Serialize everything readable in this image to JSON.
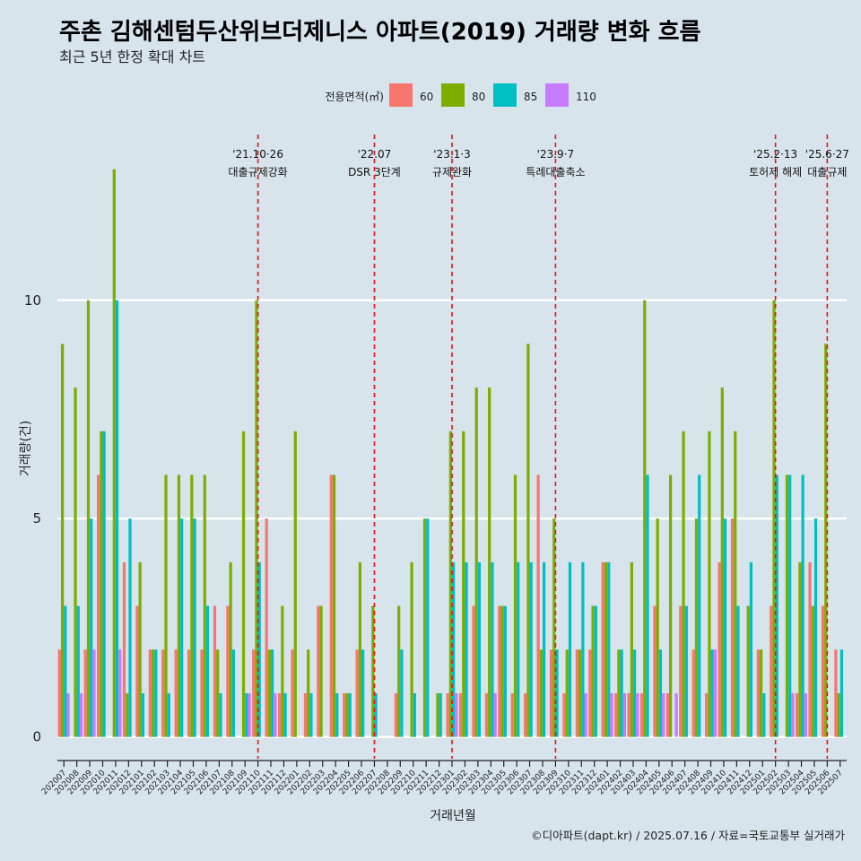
{
  "chart_data": {
    "type": "bar",
    "title": "주촌 김해센텀두산위브더제니스 아파트(2019) 거래량 변화 흐름",
    "subtitle": "최근 5년 한정 확대 차트",
    "xlabel": "거래년월",
    "ylabel": "거래량(건)",
    "ylim": [
      -0.5,
      14
    ],
    "yticks": [
      0,
      5,
      10
    ],
    "legend_title": "전용면적(㎡)",
    "legend_position": "top",
    "caption": "©디아파트(dapt.kr) / 2025.07.16 / 자료=국토교통부 실거래가",
    "categories": [
      "202007",
      "202008",
      "202009",
      "202010",
      "202011",
      "202012",
      "202101",
      "202102",
      "202103",
      "202104",
      "202105",
      "202106",
      "202107",
      "202108",
      "202109",
      "202110",
      "202111",
      "202112",
      "202201",
      "202202",
      "202203",
      "202204",
      "202205",
      "202206",
      "202207",
      "202208",
      "202209",
      "202210",
      "202211",
      "202212",
      "202301",
      "202302",
      "202303",
      "202304",
      "202305",
      "202306",
      "202307",
      "202308",
      "202309",
      "202310",
      "202311",
      "202312",
      "202401",
      "202402",
      "202403",
      "202404",
      "202405",
      "202406",
      "202407",
      "202408",
      "202409",
      "202410",
      "202411",
      "202412",
      "202501",
      "202502",
      "202503",
      "202504",
      "202505",
      "202506",
      "202507"
    ],
    "series": [
      {
        "name": "60",
        "color": "#f8766d",
        "values": [
          2,
          0,
          2,
          6,
          0,
          4,
          3,
          2,
          2,
          2,
          2,
          2,
          3,
          3,
          0,
          2,
          5,
          1,
          2,
          1,
          3,
          6,
          1,
          2,
          0,
          0,
          1,
          0,
          0,
          0,
          1,
          1,
          3,
          1,
          3,
          1,
          1,
          6,
          2,
          1,
          2,
          2,
          4,
          1,
          1,
          1,
          3,
          1,
          3,
          2,
          1,
          4,
          5,
          0,
          2,
          3,
          0,
          1,
          4,
          3,
          2
        ]
      },
      {
        "name": "80",
        "color": "#7cae00",
        "values": [
          9,
          8,
          10,
          7,
          13,
          1,
          4,
          2,
          6,
          6,
          6,
          6,
          2,
          4,
          7,
          10,
          2,
          3,
          7,
          2,
          3,
          6,
          1,
          4,
          3,
          0,
          3,
          4,
          5,
          1,
          7,
          7,
          8,
          8,
          3,
          6,
          9,
          2,
          5,
          2,
          2,
          3,
          4,
          2,
          4,
          10,
          5,
          6,
          7,
          5,
          7,
          8,
          7,
          3,
          2,
          10,
          6,
          4,
          3,
          9,
          1
        ]
      },
      {
        "name": "85",
        "color": "#00bfc4",
        "values": [
          3,
          3,
          5,
          7,
          10,
          5,
          1,
          2,
          1,
          5,
          5,
          3,
          1,
          2,
          1,
          4,
          2,
          1,
          0,
          1,
          0,
          1,
          1,
          2,
          1,
          0,
          2,
          1,
          5,
          1,
          4,
          4,
          4,
          4,
          3,
          4,
          4,
          4,
          2,
          4,
          4,
          3,
          4,
          2,
          2,
          6,
          2,
          0,
          3,
          6,
          2,
          5,
          3,
          4,
          1,
          6,
          6,
          6,
          5,
          0,
          2
        ]
      },
      {
        "name": "110",
        "color": "#c77cff",
        "values": [
          1,
          1,
          2,
          0,
          2,
          0,
          0,
          0,
          0,
          0,
          0,
          0,
          0,
          0,
          1,
          0,
          1,
          0,
          0,
          0,
          0,
          0,
          0,
          0,
          0,
          0,
          0,
          0,
          0,
          0,
          1,
          0,
          0,
          1,
          0,
          0,
          0,
          0,
          0,
          0,
          1,
          0,
          1,
          1,
          1,
          0,
          1,
          1,
          0,
          0,
          2,
          0,
          0,
          0,
          0,
          0,
          1,
          1,
          0,
          0,
          0
        ]
      }
    ],
    "events": [
      {
        "label_date": "'21.10·26",
        "label_text": "대출규제강화",
        "category": "202110"
      },
      {
        "label_date": "'22.07",
        "label_text": "DSR 3단계",
        "category": "202207"
      },
      {
        "label_date": "'23.1·3",
        "label_text": "규제완화",
        "category": "202301"
      },
      {
        "label_date": "'23.9·7",
        "label_text": "특례대출축소",
        "category": "202309"
      },
      {
        "label_date": "'25.2·13",
        "label_text": "토허제 해제",
        "category": "202502"
      },
      {
        "label_date": "'25.6·27",
        "label_text": "대출규제",
        "category": "202506"
      }
    ]
  }
}
